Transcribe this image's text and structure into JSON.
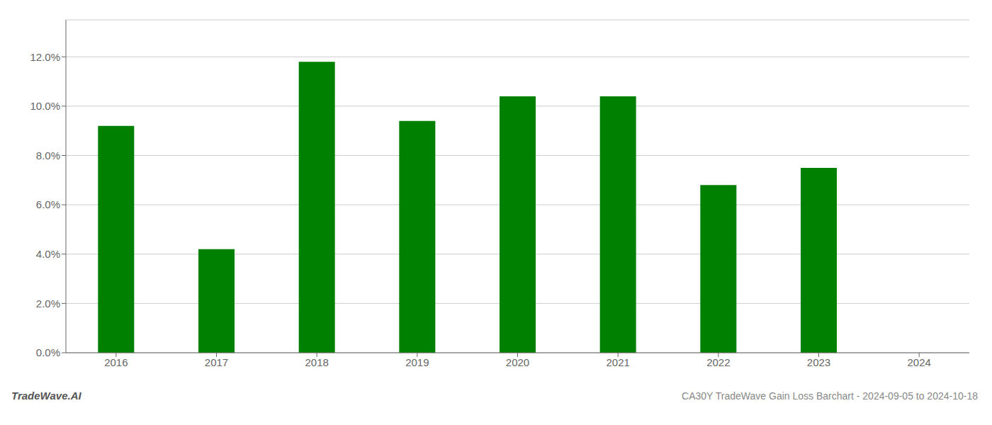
{
  "chart_data": {
    "type": "bar",
    "title": "CA30Y TradeWave Gain Loss Barchart - 2024-09-05 to 2024-10-18",
    "annotations": [
      "TradeWave.AI"
    ],
    "categories": [
      "2016",
      "2017",
      "2018",
      "2019",
      "2020",
      "2021",
      "2022",
      "2023",
      "2024"
    ],
    "values": [
      0.092,
      0.042,
      0.118,
      0.094,
      0.104,
      0.104,
      0.068,
      0.075,
      null
    ],
    "color": "#008000",
    "ylim": [
      0,
      0.135
    ],
    "yticks": [
      {
        "value": 0.0,
        "label": "0.0%"
      },
      {
        "value": 0.02,
        "label": "2.0%"
      },
      {
        "value": 0.04,
        "label": "4.0%"
      },
      {
        "value": 0.06,
        "label": "6.0%"
      },
      {
        "value": 0.08,
        "label": "8.0%"
      },
      {
        "value": 0.1,
        "label": "10.0%"
      },
      {
        "value": 0.12,
        "label": "12.0%"
      }
    ],
    "grid": true
  }
}
